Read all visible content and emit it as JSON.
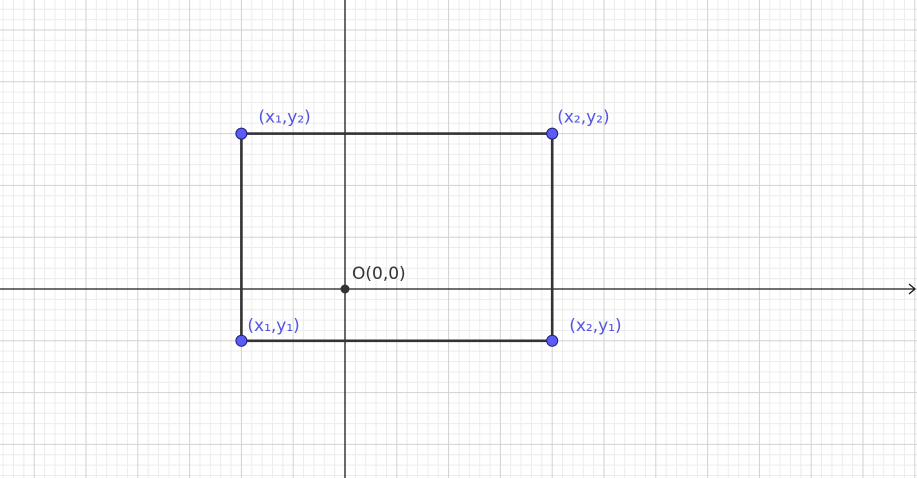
{
  "colors": {
    "background": "#ffffff",
    "minor_grid": "#ececec",
    "major_grid": "#d2d2d2",
    "axis": "#1a1a1a",
    "rectangle": "#333333",
    "point_fill": "#5b5bf5",
    "point_stroke": "#1f1f7a",
    "point_label": "#5555e0",
    "origin_fill": "#333333",
    "origin_label": "#333333"
  },
  "origin": {
    "label": "O(0,0)",
    "x": 0,
    "y": 0
  },
  "points": [
    {
      "id": "x1y2",
      "label": "(x₁,y₂)",
      "x": -2,
      "y": 3
    },
    {
      "id": "x2y2",
      "label": "(x₂,y₂)",
      "x": 4,
      "y": 3
    },
    {
      "id": "x1y1",
      "label": "(x₁,y₁)",
      "x": -2,
      "y": -1
    },
    {
      "id": "x2y1",
      "label": "(x₂,y₁)",
      "x": 4,
      "y": -1
    }
  ],
  "rectangle": {
    "x_min": -2,
    "x_max": 4,
    "y_min": -1,
    "y_max": 3
  },
  "axes": {
    "x_arrow": true,
    "y_arrow": false
  }
}
